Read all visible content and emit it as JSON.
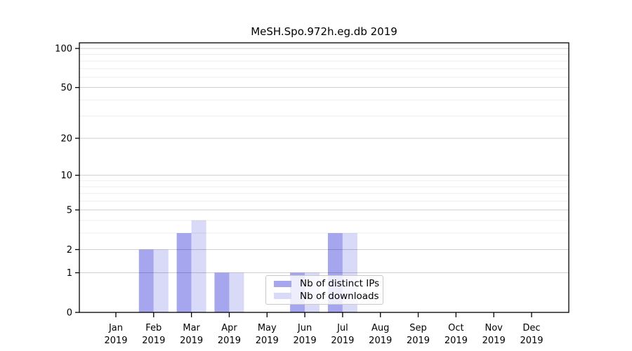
{
  "title": "MeSH.Spo.972h.eg.db 2019",
  "legend": {
    "items": [
      {
        "label": "Nb of distinct IPs",
        "color": "#a6a6ef"
      },
      {
        "label": "Nb of downloads",
        "color": "#d9d9f8"
      }
    ]
  },
  "chart_data": {
    "type": "bar",
    "title": "MeSH.Spo.972h.eg.db 2019",
    "categories": [
      "Jan",
      "Feb",
      "Mar",
      "Apr",
      "May",
      "Jun",
      "Jul",
      "Aug",
      "Sep",
      "Oct",
      "Nov",
      "Dec"
    ],
    "year_label": "2019",
    "series": [
      {
        "name": "Nb of distinct IPs",
        "color": "#a6a6ef",
        "values": [
          0,
          2,
          3,
          1,
          0,
          1,
          3,
          0,
          0,
          0,
          0,
          0
        ]
      },
      {
        "name": "Nb of downloads",
        "color": "#d9d9f8",
        "values": [
          0,
          2,
          4,
          1,
          0,
          1,
          3,
          0,
          0,
          0,
          0,
          0
        ]
      }
    ],
    "xlabel": "",
    "ylabel": "",
    "ylim": [
      0,
      100
    ],
    "y_scale": "log10(1+v)",
    "y_ticks": [
      0,
      1,
      2,
      5,
      10,
      20,
      50,
      100
    ],
    "y_minor_gridlines": [
      3,
      4,
      6,
      7,
      8,
      9,
      30,
      40,
      60,
      70,
      80,
      90
    ],
    "grid": "horizontal",
    "legend_position": "inside-bottom-center",
    "axis_color": "#000000",
    "major_grid_color": "rgba(0,0,0,0.19)",
    "minor_grid_color": "rgba(0,0,0,0.07)"
  }
}
